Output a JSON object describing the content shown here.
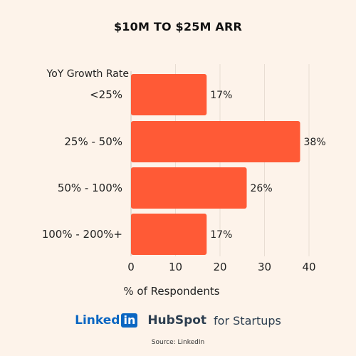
{
  "chart_data": {
    "type": "bar",
    "orientation": "horizontal",
    "title": "$10M TO $25M ARR",
    "category_axis_label": "YoY Growth Rate",
    "xlabel": "% of Respondents",
    "categories": [
      "<25%",
      "25% - 50%",
      "50% - 100%",
      "100% - 200%+"
    ],
    "values": [
      17,
      38,
      26,
      17
    ],
    "data_labels": [
      "17%",
      "38%",
      "26%",
      "17%"
    ],
    "xlim": [
      0,
      40
    ],
    "xticks": [
      0,
      10,
      20,
      30,
      40
    ],
    "grid": "vertical",
    "colors": {
      "bar": "#ff5a36",
      "grid": "#e8ddd3",
      "background": "#fdf3ea"
    }
  },
  "footer": {
    "linkedin_text": "Linked",
    "linkedin_box": "in",
    "hubspot_text": "HubSpot",
    "startups_text": "for Startups",
    "source": "Source: LinkedIn"
  }
}
